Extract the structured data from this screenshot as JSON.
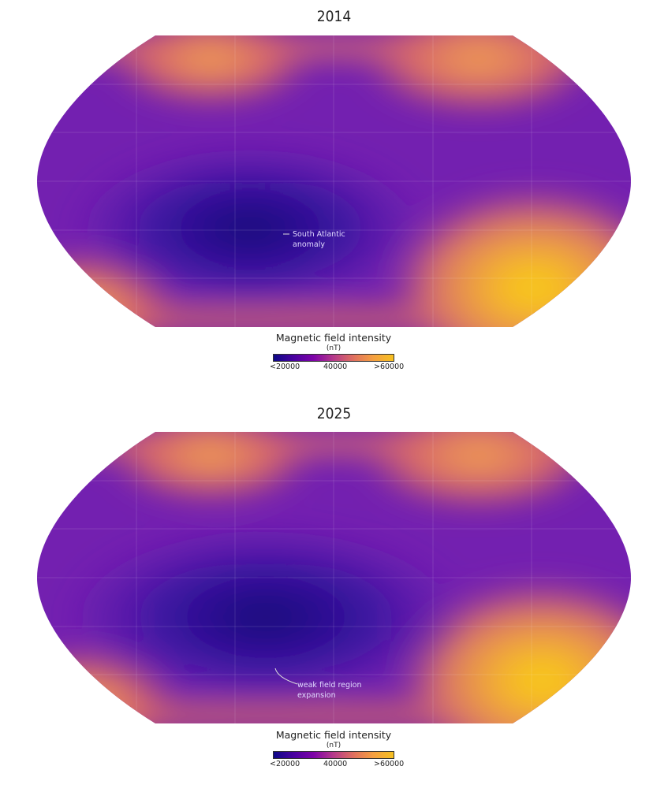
{
  "maps": [
    {
      "title": "2014",
      "annotation": [
        "South Atlantic",
        "anomaly"
      ],
      "legend": {
        "title": "Magnetic field intensity",
        "unit": "(nT)",
        "ticks": [
          "<20000",
          "40000",
          ">60000"
        ]
      }
    },
    {
      "title": "2025",
      "annotation": [
        "weak field region",
        "expansion"
      ],
      "legend": {
        "title": "Magnetic field intensity",
        "unit": "(nT)",
        "ticks": [
          "<20000",
          "40000",
          ">60000"
        ]
      }
    }
  ],
  "colorscale": {
    "min_label": "<20000",
    "mid_label": "40000",
    "max_label": ">60000",
    "colors": [
      "#0d0887",
      "#7e03a8",
      "#e0705f",
      "#f6c020"
    ]
  }
}
